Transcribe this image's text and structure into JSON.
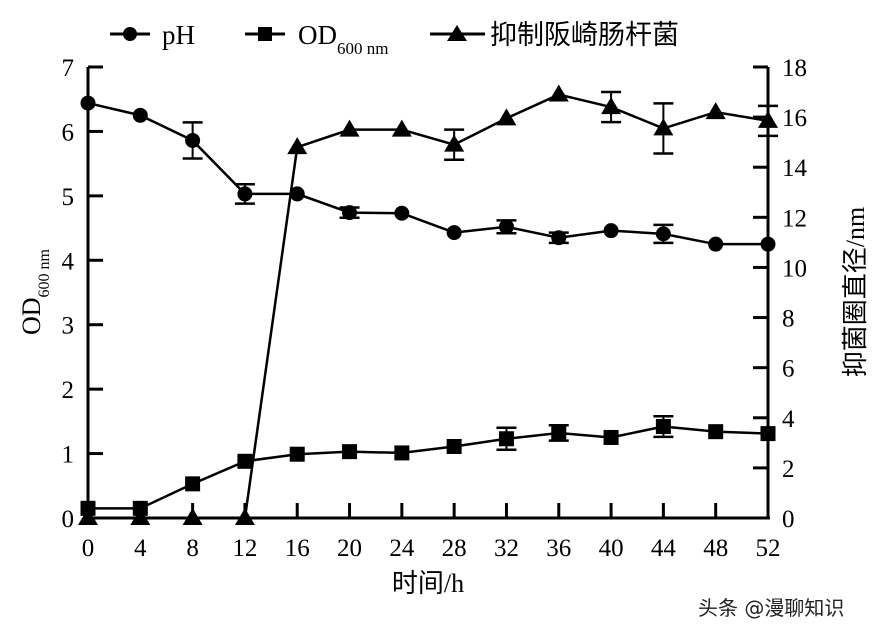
{
  "chart_data": {
    "type": "line",
    "title": "",
    "xlabel": "时间/h",
    "ylabel_left": "OD600 nm",
    "ylabel_left_main": "OD",
    "ylabel_left_sub": "600 nm",
    "ylabel_right": "抑菌圈直径/nm",
    "x": [
      0,
      4,
      8,
      12,
      16,
      20,
      24,
      28,
      32,
      36,
      40,
      44,
      48,
      52
    ],
    "x_ticks": [
      "0",
      "4",
      "8",
      "12",
      "16",
      "20",
      "24",
      "28",
      "32",
      "36",
      "40",
      "44",
      "48",
      "52"
    ],
    "xlim": [
      0,
      52
    ],
    "ylim_left": [
      0,
      7
    ],
    "ylim_right": [
      0,
      18
    ],
    "y_ticks_left": [
      "0",
      "1",
      "2",
      "3",
      "4",
      "5",
      "6",
      "7"
    ],
    "y_ticks_right": [
      "0",
      "2",
      "4",
      "6",
      "8",
      "10",
      "12",
      "14",
      "16",
      "18"
    ],
    "grid": false,
    "legend_position": "top",
    "series": [
      {
        "name": "pH",
        "marker": "circle",
        "axis": "left",
        "values": [
          6.44,
          6.25,
          5.86,
          5.03,
          5.03,
          4.74,
          4.73,
          4.43,
          4.52,
          4.35,
          4.46,
          4.41,
          4.25,
          4.25
        ],
        "errors": [
          0,
          0,
          0.28,
          0.15,
          0,
          0.08,
          0,
          0,
          0.1,
          0.08,
          0,
          0.14,
          0,
          0
        ]
      },
      {
        "name": "OD600 nm",
        "legend_main": "OD",
        "legend_sub": "600 nm",
        "marker": "square",
        "axis": "left",
        "values": [
          0.15,
          0.15,
          0.53,
          0.88,
          0.99,
          1.03,
          1.01,
          1.11,
          1.23,
          1.32,
          1.25,
          1.42,
          1.34,
          1.31
        ],
        "errors": [
          0,
          0,
          0,
          0,
          0,
          0,
          0,
          0,
          0.17,
          0.12,
          0,
          0.16,
          0,
          0
        ]
      },
      {
        "name": "抑制阪崎肠杆菌",
        "marker": "triangle",
        "axis": "right",
        "values": [
          0,
          0,
          0,
          0,
          14.8,
          15.5,
          15.5,
          14.9,
          15.95,
          16.9,
          16.4,
          15.55,
          16.2,
          15.85
        ],
        "errors": [
          0,
          0,
          0,
          0,
          0,
          0,
          0,
          0.6,
          0,
          0,
          0.6,
          1.0,
          0,
          0.6
        ]
      }
    ]
  },
  "watermark": "头条 @漫聊知识"
}
